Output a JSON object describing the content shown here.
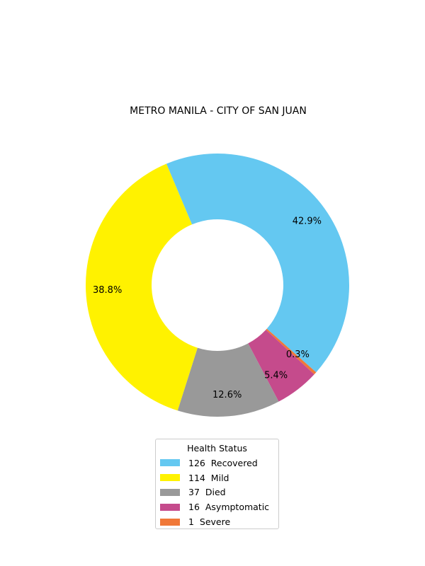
{
  "chart_data": {
    "type": "pie",
    "donut": true,
    "title": "METRO MANILA - CITY OF SAN JUAN",
    "legend_title": "Health Status",
    "legend_position": "bottom",
    "slices": [
      {
        "label": "Recovered",
        "value": 126,
        "pct_label": "42.9%",
        "color": "#64c8f1",
        "legend": "126  Recovered"
      },
      {
        "label": "Severe",
        "value": 1,
        "pct_label": "0.3%",
        "color": "#f07838",
        "legend": "1  Severe"
      },
      {
        "label": "Asymptomatic",
        "value": 16,
        "pct_label": "5.4%",
        "color": "#c54b8c",
        "legend": "16  Asymptomatic"
      },
      {
        "label": "Died",
        "value": 37,
        "pct_label": "12.6%",
        "color": "#999999",
        "legend": "37  Died"
      },
      {
        "label": "Mild",
        "value": 114,
        "pct_label": "38.8%",
        "color": "#fff200",
        "legend": "114  Mild"
      }
    ],
    "legend_order": [
      "Recovered",
      "Mild",
      "Died",
      "Asymptomatic",
      "Severe"
    ]
  }
}
